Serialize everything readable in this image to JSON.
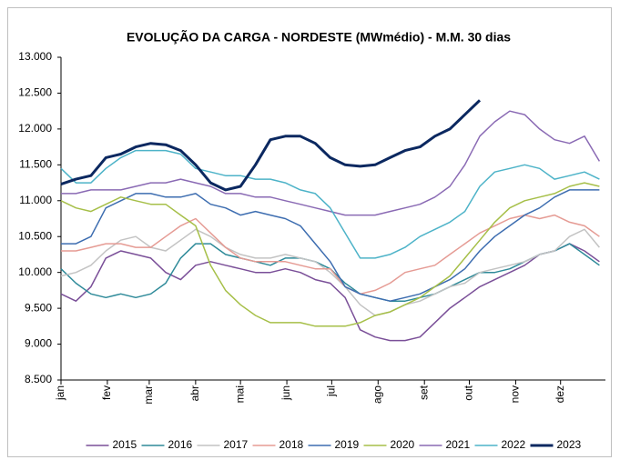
{
  "chart_data": {
    "type": "line",
    "title": "EVOLUÇÃO DA CARGA - NORDESTE (MWmédio) - M.M. 30 dias",
    "x": [
      1,
      11,
      21,
      31,
      41,
      51,
      61,
      71,
      81,
      91,
      101,
      111,
      121,
      131,
      141,
      151,
      161,
      171,
      181,
      191,
      201,
      211,
      221,
      231,
      241,
      251,
      261,
      271,
      281,
      291,
      301,
      311,
      321,
      331,
      341,
      351,
      361
    ],
    "xlim": [
      1,
      365
    ],
    "xticks": [
      {
        "value": 1,
        "label": "jan"
      },
      {
        "value": 32,
        "label": "fev"
      },
      {
        "value": 60,
        "label": "mar"
      },
      {
        "value": 91,
        "label": "abr"
      },
      {
        "value": 121,
        "label": "mai"
      },
      {
        "value": 152,
        "label": "jun"
      },
      {
        "value": 182,
        "label": "jul"
      },
      {
        "value": 213,
        "label": "ago"
      },
      {
        "value": 244,
        "label": "set"
      },
      {
        "value": 274,
        "label": "out"
      },
      {
        "value": 305,
        "label": "nov"
      },
      {
        "value": 335,
        "label": "dez"
      }
    ],
    "ylim": [
      8500,
      13000
    ],
    "yticks": [
      {
        "value": 8500,
        "label": "8.500"
      },
      {
        "value": 9000,
        "label": "9.000"
      },
      {
        "value": 9500,
        "label": "9.500"
      },
      {
        "value": 10000,
        "label": "10.000"
      },
      {
        "value": 10500,
        "label": "10.500"
      },
      {
        "value": 11000,
        "label": "11.000"
      },
      {
        "value": 11500,
        "label": "11.500"
      },
      {
        "value": 12000,
        "label": "12.000"
      },
      {
        "value": 12500,
        "label": "12.500"
      },
      {
        "value": 13000,
        "label": "13.000"
      }
    ],
    "grid": false,
    "legend": "bottom",
    "series": [
      {
        "name": "2015",
        "color": "#7a4f98",
        "width": 1.5,
        "values": [
          9700,
          9600,
          9800,
          10200,
          10300,
          10250,
          10200,
          10000,
          9900,
          10100,
          10150,
          10100,
          10050,
          10000,
          10000,
          10050,
          10000,
          9900,
          9850,
          9650,
          9200,
          9100,
          9050,
          9050,
          9100,
          9300,
          9500,
          9650,
          9800,
          9900,
          10000,
          10100,
          10250,
          10300,
          10400,
          10300,
          10150
        ]
      },
      {
        "name": "2016",
        "color": "#2e8a99",
        "width": 1.5,
        "values": [
          10050,
          9850,
          9700,
          9650,
          9700,
          9650,
          9700,
          9850,
          10200,
          10400,
          10400,
          10250,
          10200,
          10150,
          10100,
          10200,
          10200,
          10150,
          10050,
          9850,
          9700,
          9650,
          9600,
          9600,
          9650,
          9700,
          9800,
          9900,
          10000,
          10000,
          10050,
          10150,
          10250,
          10300,
          10400,
          10250,
          10100
        ]
      },
      {
        "name": "2017",
        "color": "#c3c3c3",
        "width": 1.5,
        "values": [
          9950,
          10000,
          10100,
          10300,
          10450,
          10500,
          10350,
          10300,
          10450,
          10600,
          10500,
          10350,
          10250,
          10200,
          10200,
          10250,
          10200,
          10150,
          10000,
          9800,
          9550,
          9400,
          9450,
          9550,
          9600,
          9700,
          9800,
          9850,
          10000,
          10050,
          10100,
          10150,
          10250,
          10300,
          10500,
          10600,
          10350
        ]
      },
      {
        "name": "2018",
        "color": "#e59b94",
        "width": 1.5,
        "values": [
          10300,
          10300,
          10350,
          10400,
          10400,
          10350,
          10350,
          10500,
          10650,
          10750,
          10550,
          10350,
          10200,
          10150,
          10150,
          10150,
          10100,
          10050,
          10050,
          9800,
          9700,
          9750,
          9850,
          10000,
          10050,
          10100,
          10250,
          10400,
          10550,
          10650,
          10750,
          10800,
          10750,
          10800,
          10700,
          10650,
          10500
        ]
      },
      {
        "name": "2019",
        "color": "#3d6db0",
        "width": 1.5,
        "values": [
          10400,
          10400,
          10500,
          10900,
          11000,
          11100,
          11100,
          11050,
          11050,
          11100,
          10950,
          10900,
          10800,
          10850,
          10800,
          10750,
          10650,
          10400,
          10150,
          9800,
          9700,
          9650,
          9600,
          9650,
          9700,
          9800,
          9900,
          10050,
          10300,
          10500,
          10650,
          10800,
          10900,
          11050,
          11150,
          11150,
          11150
        ]
      },
      {
        "name": "2020",
        "color": "#a6bf48",
        "width": 1.5,
        "values": [
          11000,
          10900,
          10850,
          10950,
          11050,
          11000,
          10950,
          10950,
          10800,
          10650,
          10100,
          9750,
          9550,
          9400,
          9300,
          9300,
          9300,
          9250,
          9250,
          9250,
          9300,
          9400,
          9450,
          9550,
          9650,
          9800,
          9950,
          10200,
          10450,
          10700,
          10900,
          11000,
          11050,
          11100,
          11200,
          11250,
          11200
        ]
      },
      {
        "name": "2021",
        "color": "#8a6ab4",
        "width": 1.5,
        "values": [
          11100,
          11100,
          11150,
          11150,
          11150,
          11200,
          11250,
          11250,
          11300,
          11250,
          11200,
          11100,
          11100,
          11050,
          11050,
          11000,
          10950,
          10900,
          10850,
          10800,
          10800,
          10800,
          10850,
          10900,
          10950,
          11050,
          11200,
          11500,
          11900,
          12100,
          12250,
          12200,
          12000,
          11850,
          11800,
          11900,
          11550
        ]
      },
      {
        "name": "2022",
        "color": "#4db3c8",
        "width": 1.5,
        "values": [
          11450,
          11250,
          11250,
          11450,
          11600,
          11700,
          11700,
          11700,
          11650,
          11450,
          11400,
          11350,
          11350,
          11300,
          11300,
          11250,
          11150,
          11100,
          10900,
          10550,
          10200,
          10200,
          10250,
          10350,
          10500,
          10600,
          10700,
          10850,
          11200,
          11400,
          11450,
          11500,
          11450,
          11300,
          11350,
          11400,
          11300
        ]
      },
      {
        "name": "2023",
        "color": "#0b2860",
        "width": 3,
        "values": [
          11230,
          11300,
          11350,
          11600,
          11650,
          11750,
          11800,
          11780,
          11700,
          11500,
          11250,
          11150,
          11200,
          11500,
          11850,
          11900,
          11900,
          11800,
          11600,
          11500,
          11480,
          11500,
          11600,
          11700,
          11750,
          11900,
          12000,
          12200,
          12400,
          null,
          null,
          null,
          null,
          null,
          null,
          null,
          null
        ]
      }
    ]
  }
}
